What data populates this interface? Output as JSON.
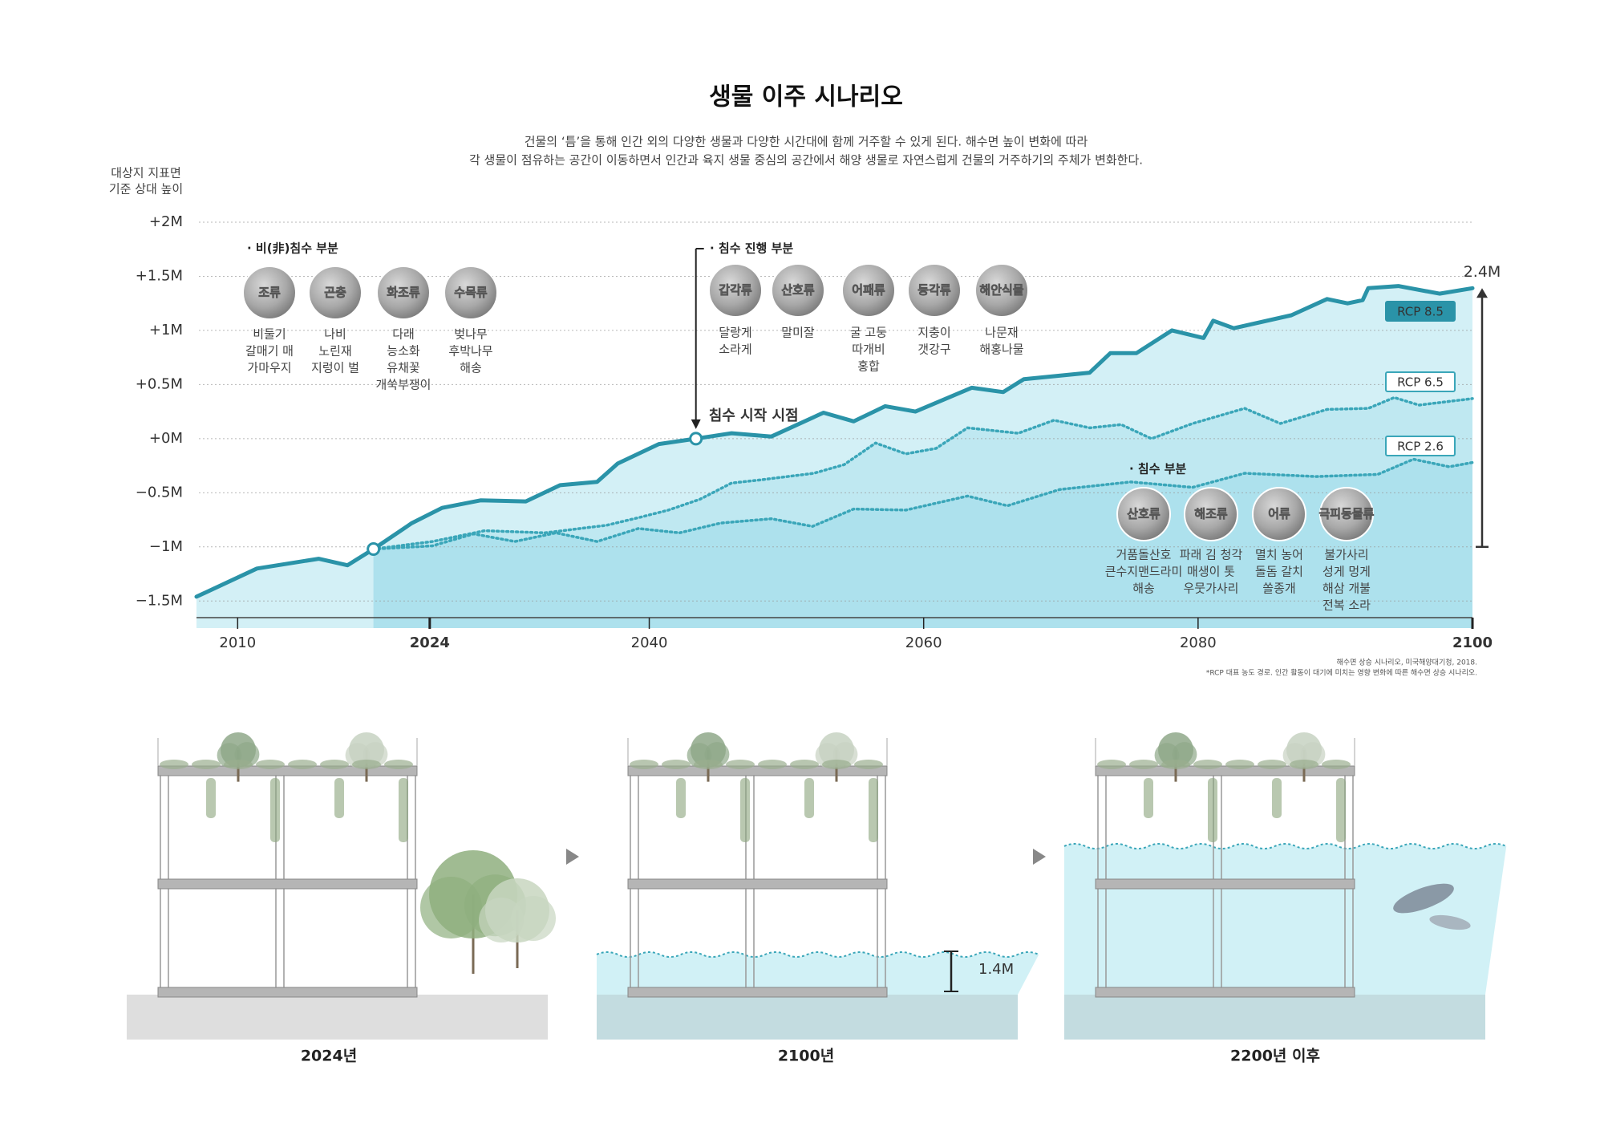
{
  "title": "생물 이주 시나리오",
  "subtitle": [
    "건물의 ‘틈’을 통해 인간 외의 다양한 생물과 다양한 시간대에 함께 거주할 수 있게 된다. 해수면 높이 변화에 따라",
    "각 생물이 점유하는 공간이 이동하면서 인간과 육지 생물 중심의 공간에서 해양 생물로 자연스럽게 건물의 거주하기의 주체가 변화한다."
  ],
  "chart_data": {
    "type": "area-line",
    "y_label": [
      "대상지 지표면",
      "기준 상대 높이"
    ],
    "xlim": [
      2007,
      2100
    ],
    "xticks": [
      2010,
      2024,
      2040,
      2060,
      2080,
      2100
    ],
    "ylim": [
      -1.75,
      2
    ],
    "yticks": [
      {
        "value": 2,
        "label": "+2M"
      },
      {
        "value": 1.5,
        "label": "+1.5M"
      },
      {
        "value": 1,
        "label": "+1M"
      },
      {
        "value": 0.5,
        "label": "+0.5M"
      },
      {
        "value": 0,
        "label": "+0M"
      },
      {
        "value": -0.5,
        "label": "−0.5M"
      },
      {
        "value": -1,
        "label": "−1M"
      },
      {
        "value": -1.5,
        "label": "−1.5M"
      }
    ],
    "grid": true,
    "series": [
      {
        "name": "RCP 8.5",
        "color": "#2a93a8",
        "style": "solid",
        "fill": "#d3f0f6",
        "x": [
          2007,
          2011.4,
          2015.9,
          2018,
          2019.9,
          2022.7,
          2024.9,
          2027.7,
          2031,
          2033.5,
          2036.2,
          2037.7,
          2040.7,
          2043.4,
          2046,
          2048.9,
          2052.7,
          2054.9,
          2057.2,
          2059.4,
          2063.5,
          2065.8,
          2067.3,
          2072.1,
          2073.6,
          2075.5,
          2078.1,
          2080.4,
          2081.1,
          2082.6,
          2086.8,
          2089.4,
          2090.9,
          2092,
          2092.4,
          2094.6,
          2097.6,
          2100
        ],
        "values": [
          -1.46,
          -1.2,
          -1.11,
          -1.17,
          -1.02,
          -0.78,
          -0.64,
          -0.57,
          -0.58,
          -0.43,
          -0.4,
          -0.23,
          -0.05,
          0,
          0.05,
          0.02,
          0.24,
          0.16,
          0.3,
          0.25,
          0.47,
          0.43,
          0.55,
          0.61,
          0.79,
          0.79,
          1.0,
          0.93,
          1.09,
          1.02,
          1.14,
          1.29,
          1.25,
          1.28,
          1.39,
          1.41,
          1.34,
          1.39
        ]
      },
      {
        "name": "RCP 6.5",
        "color": "#3aa6b9",
        "style": "dotted",
        "fill": "#bfe8f1",
        "x": [
          2019.9,
          2024.2,
          2028,
          2032.4,
          2036.9,
          2039.2,
          2041.4,
          2043.7,
          2046,
          2048.2,
          2052,
          2054.2,
          2056.5,
          2058.7,
          2060.9,
          2063.2,
          2066.9,
          2069.5,
          2072.1,
          2074.4,
          2076.6,
          2079.6,
          2083.4,
          2086,
          2089.4,
          2092.4,
          2094.3,
          2096.1,
          2100
        ],
        "values": [
          -1.02,
          -0.95,
          -0.85,
          -0.87,
          -0.8,
          -0.73,
          -0.66,
          -0.56,
          -0.41,
          -0.38,
          -0.32,
          -0.24,
          -0.04,
          -0.14,
          -0.09,
          0.1,
          0.05,
          0.17,
          0.1,
          0.13,
          0,
          0.14,
          0.28,
          0.14,
          0.27,
          0.28,
          0.38,
          0.31,
          0.37
        ]
      },
      {
        "name": "RCP 2.6",
        "color": "#3aa6b9",
        "style": "dotted",
        "fill": "#ade1ed",
        "x": [
          2019.9,
          2024.2,
          2027.2,
          2030.2,
          2033.2,
          2036.2,
          2039.2,
          2042.2,
          2045.2,
          2048.9,
          2051.9,
          2054.9,
          2058.7,
          2063.2,
          2066.1,
          2069.9,
          2075.1,
          2079.6,
          2083.4,
          2088.6,
          2093.1,
          2095.7,
          2098.3,
          2100
        ],
        "values": [
          -1.02,
          -0.99,
          -0.88,
          -0.95,
          -0.87,
          -0.95,
          -0.83,
          -0.87,
          -0.78,
          -0.74,
          -0.81,
          -0.65,
          -0.66,
          -0.53,
          -0.62,
          -0.47,
          -0.4,
          -0.45,
          -0.32,
          -0.35,
          -0.33,
          -0.19,
          -0.26,
          -0.22
        ]
      }
    ],
    "annotations": {
      "start": "침수 시작 시점",
      "rise": "2.4M"
    },
    "groups": [
      {
        "title": "· 비(非)침수 부분",
        "items": [
          {
            "name": "조류",
            "examples": [
              "비둘기",
              "갈매기 매",
              "가마우지"
            ]
          },
          {
            "name": "곤충",
            "examples": [
              "나비",
              "노린재",
              "지렁이 벌"
            ]
          },
          {
            "name": "화조류",
            "examples": [
              "다래",
              "능소화",
              "유채꽃",
              "개쑥부쟁이"
            ]
          },
          {
            "name": "수목류",
            "examples": [
              "벚나무",
              "후박나무",
              "해송"
            ]
          }
        ]
      },
      {
        "title": "· 침수 진행 부분",
        "items": [
          {
            "name": "갑각류",
            "examples": [
              "달랑게",
              "소라게"
            ]
          },
          {
            "name": "산호류",
            "examples": [
              "말미잘"
            ]
          },
          {
            "name": "어패류",
            "examples": [
              "굴 고둥",
              "따개비",
              "홍합"
            ]
          },
          {
            "name": "등각류",
            "examples": [
              "지충이",
              "갯강구"
            ]
          },
          {
            "name": "해안식물",
            "examples": [
              "나문재",
              "해홍나물"
            ]
          }
        ]
      },
      {
        "title": "· 침수 부분",
        "items": [
          {
            "name": "산호류",
            "examples": [
              "거품돌산호",
              "큰수지맨드라미",
              "해송"
            ]
          },
          {
            "name": "해조류",
            "examples": [
              "파래 김 청각",
              "매생이 톳",
              "우뭇가사리"
            ]
          },
          {
            "name": "어류",
            "examples": [
              "멸치 농어",
              "돌돔 갈치",
              "쏠종개"
            ]
          },
          {
            "name": "극피동물류",
            "examples": [
              "불가사리",
              "성게 멍게",
              "해삼 개불",
              "전복 소라"
            ]
          }
        ]
      }
    ],
    "notes": [
      "해수면 상승 시나리오, 미국해양대기청, 2018.",
      "*RCP 대표 농도 경로. 인간 활동이 대기에 미치는 영향 변화에 따른 해수면 상승 시나리오."
    ]
  },
  "illustrations": {
    "captions": [
      "2024년",
      "2100년",
      "2200년 이후"
    ],
    "depth_label": "1.4M"
  }
}
